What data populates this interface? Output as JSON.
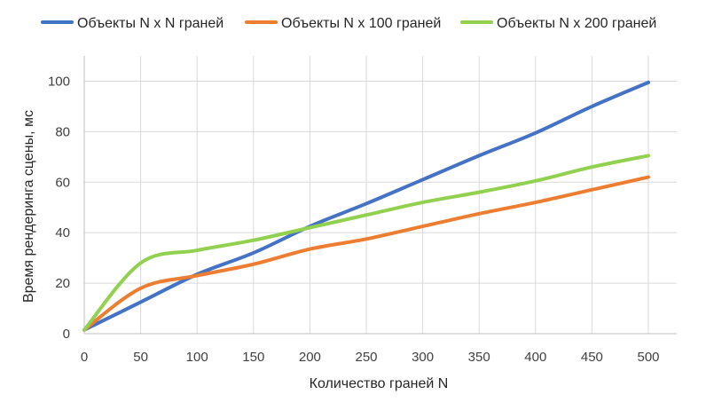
{
  "chart_data": {
    "type": "line",
    "title": "",
    "xlabel": "Количество граней N",
    "ylabel": "Время рендеринга сцены, мс",
    "xlim": [
      0,
      500
    ],
    "ylim": [
      0,
      110
    ],
    "xticks": [
      0,
      50,
      100,
      150,
      200,
      250,
      300,
      350,
      400,
      450,
      500
    ],
    "yticks": [
      0,
      20,
      40,
      60,
      80,
      100
    ],
    "grid": "vertical and horizontal",
    "legend_position": "top",
    "series": [
      {
        "name": "Объекты N x N граней",
        "color": "#4472c4",
        "x": [
          0,
          50,
          100,
          150,
          200,
          250,
          300,
          350,
          400,
          450,
          500
        ],
        "y": [
          1.5,
          12.5,
          23.5,
          32,
          42.5,
          51.5,
          61,
          70.5,
          79.5,
          90,
          99.5
        ]
      },
      {
        "name": "Объекты N x 100 граней",
        "color": "#ed7d31",
        "x": [
          0,
          50,
          100,
          150,
          200,
          250,
          300,
          350,
          400,
          450,
          500
        ],
        "y": [
          1.5,
          18,
          23,
          27.5,
          33.5,
          37.5,
          42.5,
          47.5,
          52,
          57,
          62
        ]
      },
      {
        "name": "Объекты N x 200 граней",
        "color": "#92d050",
        "x": [
          0,
          50,
          100,
          150,
          200,
          250,
          300,
          350,
          400,
          450,
          500
        ],
        "y": [
          1.5,
          28,
          33,
          37,
          42,
          47,
          52,
          56,
          60.5,
          66,
          70.5
        ]
      }
    ]
  }
}
